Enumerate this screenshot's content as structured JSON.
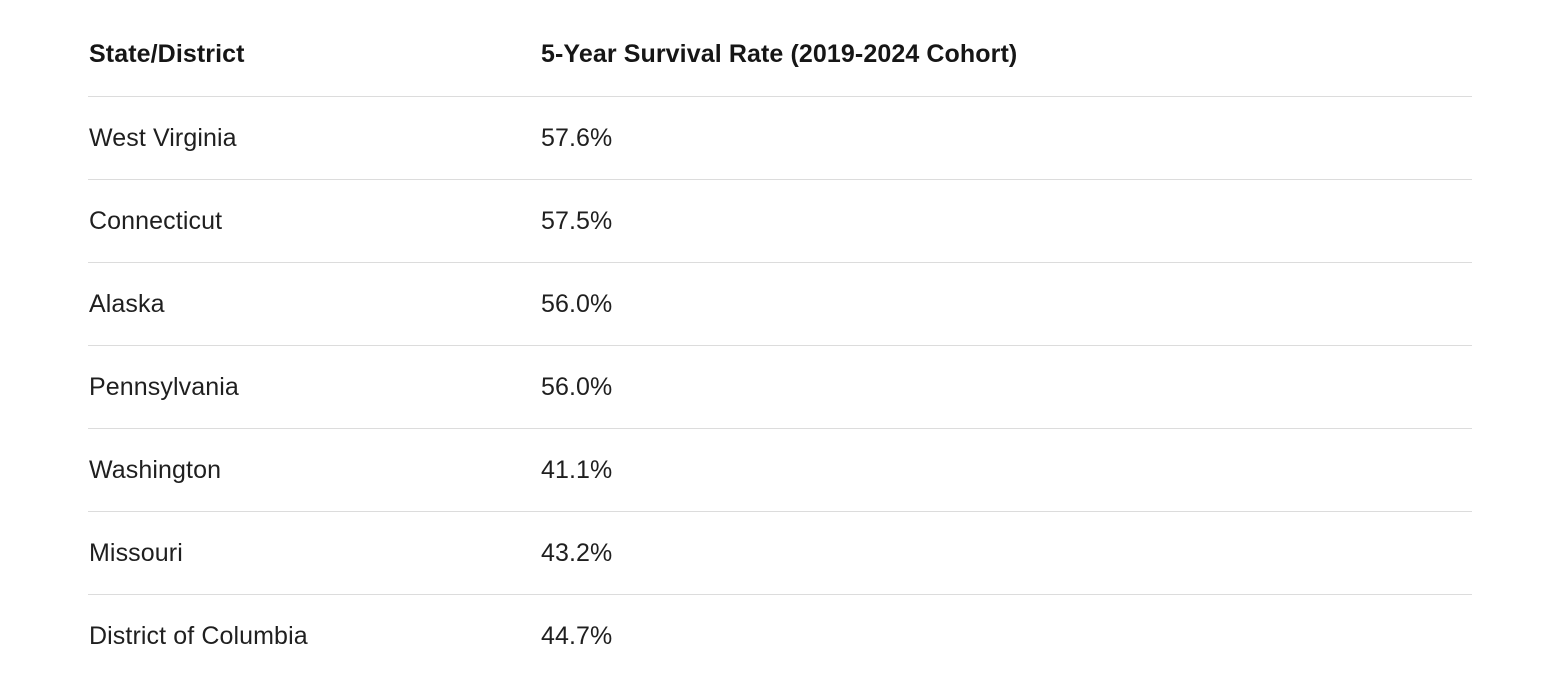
{
  "chart_data": {
    "type": "table",
    "title": "",
    "columns": [
      "State/District",
      "5-Year Survival Rate (2019-2024 Cohort)"
    ],
    "rows": [
      {
        "state": "West Virginia",
        "rate": "57.6%"
      },
      {
        "state": "Connecticut",
        "rate": "57.5%"
      },
      {
        "state": "Alaska",
        "rate": "56.0%"
      },
      {
        "state": "Pennsylvania",
        "rate": "56.0%"
      },
      {
        "state": "Washington",
        "rate": "41.1%"
      },
      {
        "state": "Missouri",
        "rate": "43.2%"
      },
      {
        "state": "District of Columbia",
        "rate": "44.7%"
      }
    ]
  },
  "colors": {
    "background": "#ffffff",
    "header_text": "#161616",
    "body_text": "#1f1f1f",
    "divider": "#dcdcdc"
  }
}
